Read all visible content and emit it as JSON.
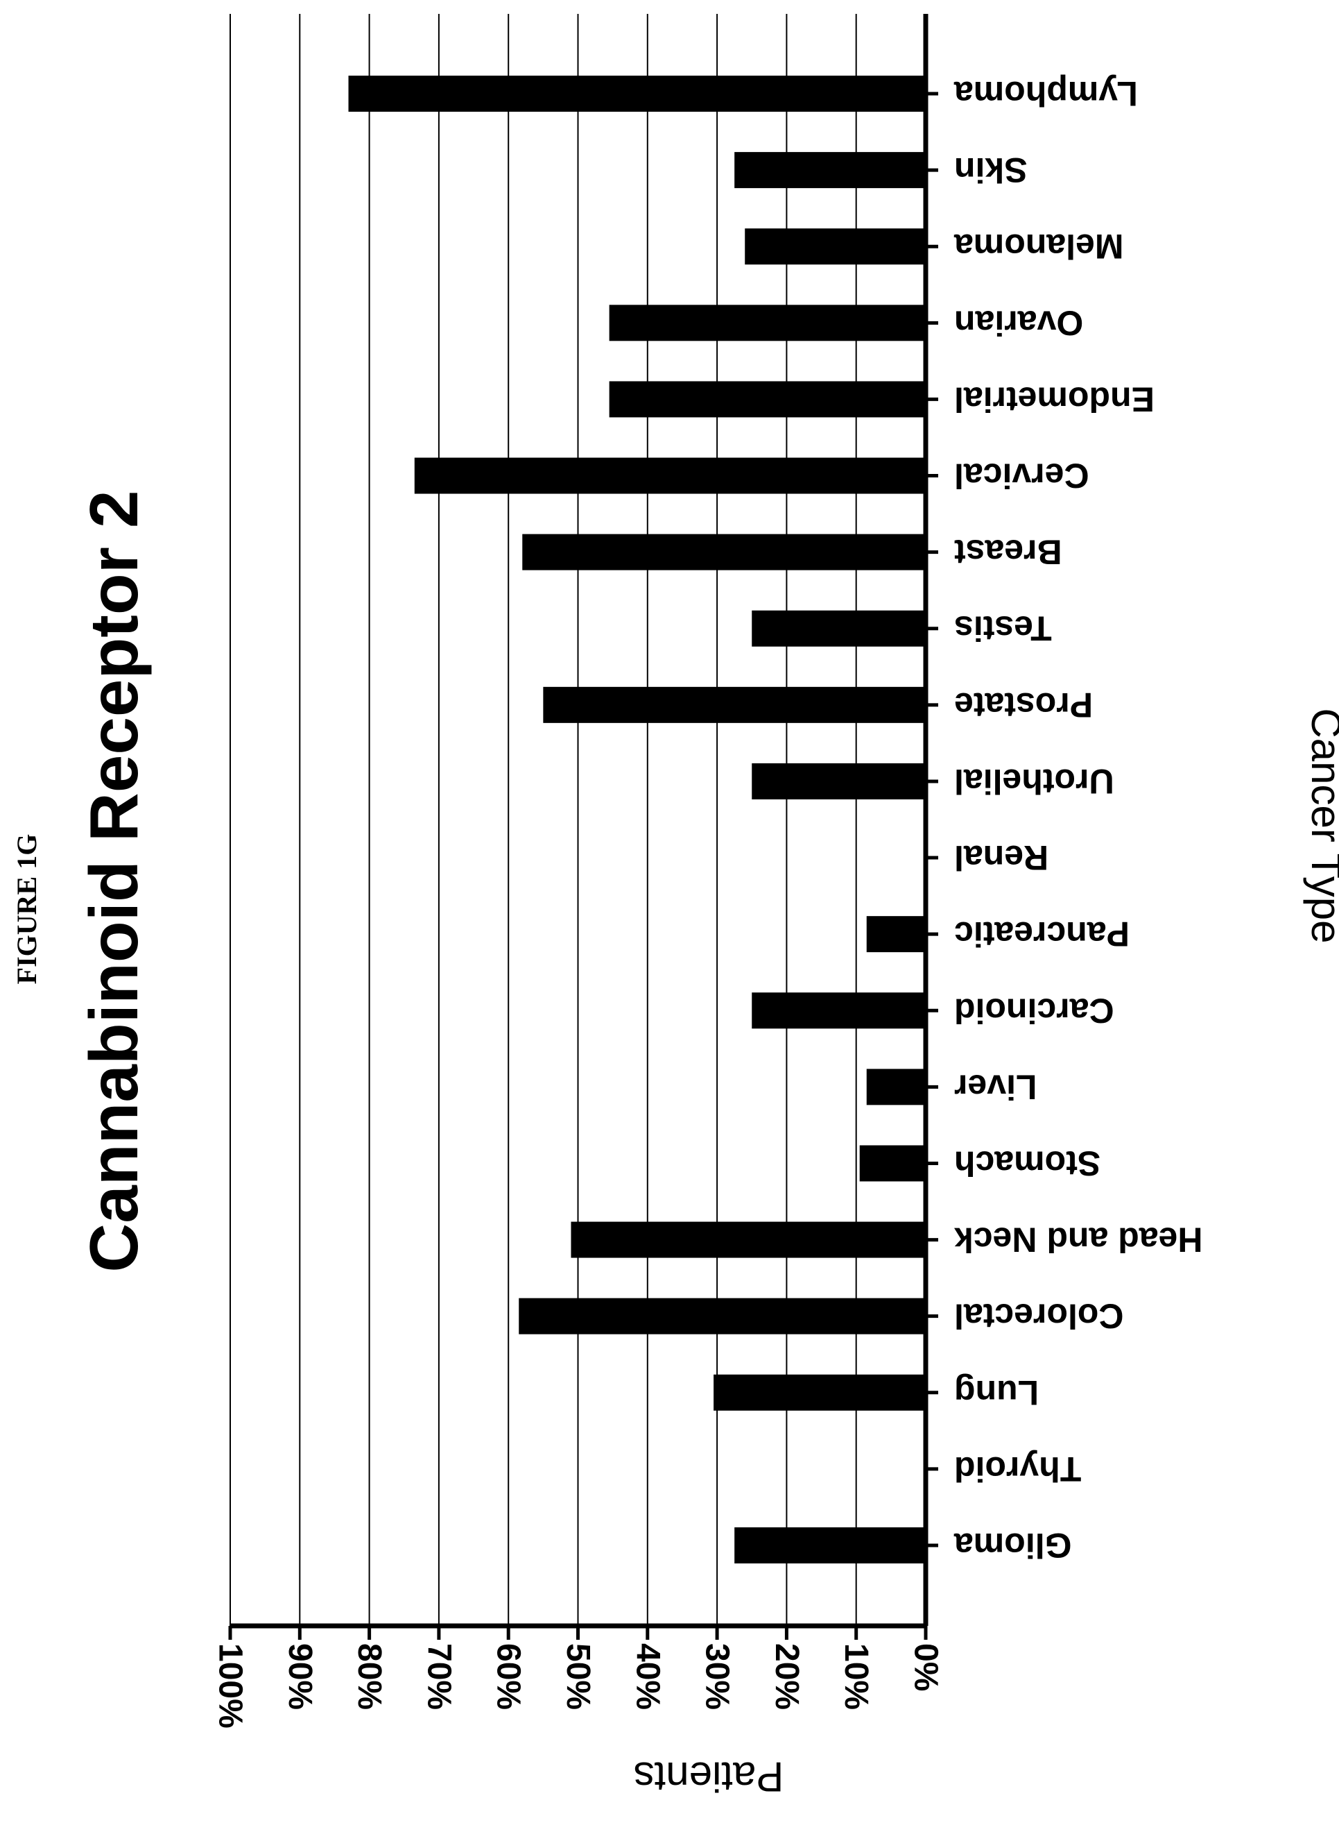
{
  "figure_label": "FIGURE 1G",
  "chart_data": {
    "type": "bar",
    "orientation": "rotated-horizontal",
    "title": "Cannabinoid Receptor 2",
    "xlabel": "Cancer Type",
    "ylabel": "Patients",
    "ylim": [
      0,
      100
    ],
    "grid": true,
    "yticks": [
      "0%",
      "10%",
      "20%",
      "30%",
      "40%",
      "50%",
      "60%",
      "70%",
      "80%",
      "90%",
      "100%"
    ],
    "categories": [
      "Glioma",
      "Thyroid",
      "Lung",
      "Colorectal",
      "Head and Neck",
      "Stomach",
      "Liver",
      "Carcinoid",
      "Pancreatic",
      "Renal",
      "Urothelial",
      "Prostate",
      "Testis",
      "Breast",
      "Cervical",
      "Endometrial",
      "Ovarian",
      "Melanoma",
      "Skin",
      "Lymphoma"
    ],
    "values": [
      27.5,
      0,
      30.5,
      58.5,
      51,
      9.5,
      8.5,
      25,
      8.5,
      0,
      25,
      55,
      25,
      58,
      73.5,
      45.5,
      45.5,
      26,
      27.5,
      83
    ],
    "colors": {
      "bar": "#000000",
      "grid": "#000000",
      "background": "#ffffff"
    }
  }
}
